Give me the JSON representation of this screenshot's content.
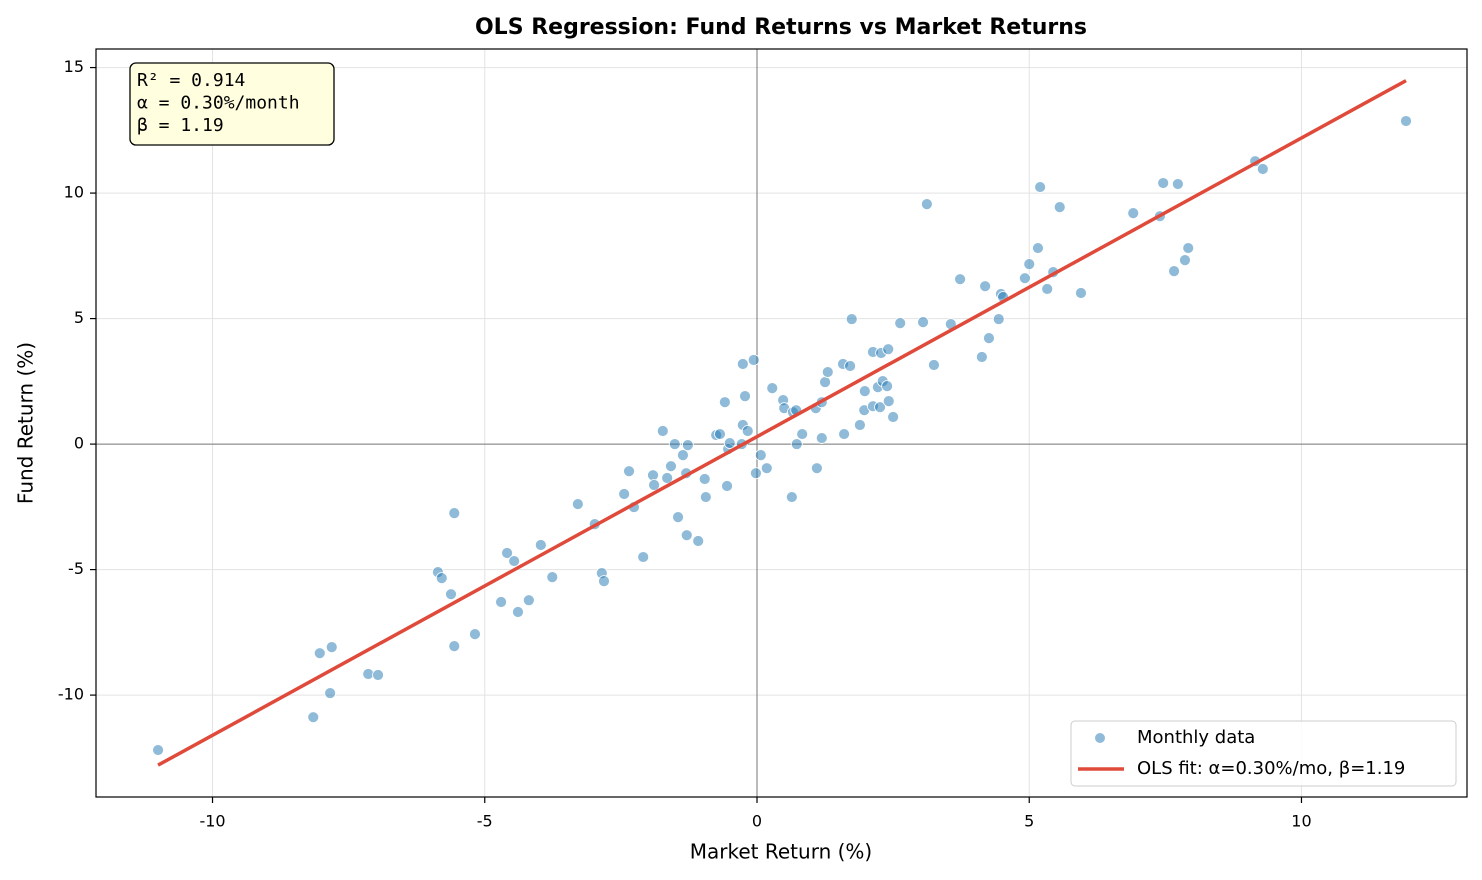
{
  "chart_data": {
    "type": "scatter",
    "title": "OLS Regression: Fund Returns vs Market Returns",
    "x_label": "Market Return (%)",
    "y_label": "Fund Return (%)",
    "xlim": [
      -12.14,
      13.04
    ],
    "ylim": [
      -14.06,
      15.74
    ],
    "xticks": [
      -10,
      -5,
      0,
      5,
      10
    ],
    "yticks": [
      -10,
      -5,
      0,
      5,
      10,
      15
    ],
    "grid": true,
    "hlines": [
      0
    ],
    "vlines": [
      0
    ],
    "legend": "lower right",
    "annotation": [
      "R² = 0.914",
      "α = 0.30%/month",
      "β = 1.19"
    ],
    "series": [
      {
        "name": "Monthly data",
        "type": "scatter",
        "color": "#1f77b4",
        "x": [
          -11.0,
          -8.15,
          -8.03,
          -7.84,
          -7.81,
          -7.14,
          -6.96,
          -5.86,
          -5.79,
          -5.62,
          -5.56,
          -5.56,
          -5.18,
          -4.7,
          -4.59,
          -4.46,
          -4.39,
          -4.19,
          -3.97,
          -3.76,
          -3.29,
          -2.98,
          -2.85,
          -2.81,
          -2.44,
          -2.35,
          -2.26,
          -2.09,
          -1.91,
          -1.89,
          -1.73,
          -1.65,
          -1.58,
          -1.51,
          -1.45,
          -1.36,
          -1.3,
          -1.29,
          -1.27,
          -1.08,
          -0.96,
          -0.94,
          -0.75,
          -0.68,
          -0.59,
          -0.55,
          -0.53,
          -0.5,
          -0.28,
          -0.26,
          -0.26,
          -0.22,
          -0.17,
          -0.06,
          -0.02,
          0.07,
          0.18,
          0.28,
          0.48,
          0.5,
          0.64,
          0.66,
          0.72,
          0.73,
          0.83,
          1.08,
          1.1,
          1.19,
          1.19,
          1.25,
          1.3,
          1.58,
          1.6,
          1.71,
          1.74,
          1.89,
          1.97,
          1.98,
          2.13,
          2.13,
          2.22,
          2.26,
          2.28,
          2.31,
          2.39,
          2.41,
          2.42,
          2.5,
          2.63,
          3.05,
          3.12,
          3.25,
          3.56,
          3.73,
          4.13,
          4.19,
          4.26,
          4.44,
          4.48,
          4.52,
          4.92,
          5.0,
          5.16,
          5.2,
          5.33,
          5.44,
          5.56,
          5.95,
          6.91,
          7.4,
          7.46,
          7.66,
          7.73,
          7.86,
          7.92,
          9.15,
          9.29,
          11.92
        ],
        "values": [
          -12.19,
          -10.88,
          -8.33,
          -9.92,
          -8.09,
          -9.16,
          -9.2,
          -5.1,
          -5.34,
          -5.98,
          -2.75,
          -8.05,
          -7.57,
          -6.29,
          -4.34,
          -4.66,
          -6.69,
          -6.22,
          -4.02,
          -5.3,
          -2.39,
          -3.19,
          -5.14,
          -5.46,
          -1.99,
          -1.08,
          -2.51,
          -4.5,
          -1.24,
          -1.63,
          0.52,
          -1.35,
          -0.88,
          0.0,
          -2.91,
          -0.44,
          -1.16,
          -3.63,
          -0.04,
          -3.86,
          -1.39,
          -2.11,
          0.36,
          0.4,
          1.67,
          -1.67,
          -0.2,
          0.04,
          0.0,
          3.19,
          0.76,
          1.91,
          0.52,
          3.35,
          -1.16,
          -0.44,
          -0.96,
          2.23,
          1.75,
          1.43,
          -2.11,
          1.27,
          1.35,
          0.0,
          0.4,
          1.43,
          -0.96,
          1.67,
          0.24,
          2.47,
          2.87,
          3.19,
          0.4,
          3.11,
          4.98,
          0.76,
          1.35,
          2.11,
          3.67,
          1.51,
          2.27,
          1.47,
          3.63,
          2.51,
          2.31,
          3.78,
          1.71,
          1.08,
          4.82,
          4.86,
          9.56,
          3.15,
          4.78,
          6.57,
          3.47,
          6.29,
          4.22,
          4.98,
          5.98,
          5.86,
          6.61,
          7.17,
          7.81,
          10.24,
          6.18,
          6.85,
          9.44,
          6.02,
          9.2,
          9.08,
          10.4,
          6.89,
          10.36,
          7.33,
          7.81,
          11.27,
          10.96,
          12.87
        ]
      },
      {
        "name": "OLS fit: α=0.30%/mo, β=1.19",
        "type": "line",
        "color": "#e04a3b",
        "x": [
          -11.0,
          11.92
        ],
        "values": [
          -12.79,
          14.48
        ]
      }
    ]
  }
}
